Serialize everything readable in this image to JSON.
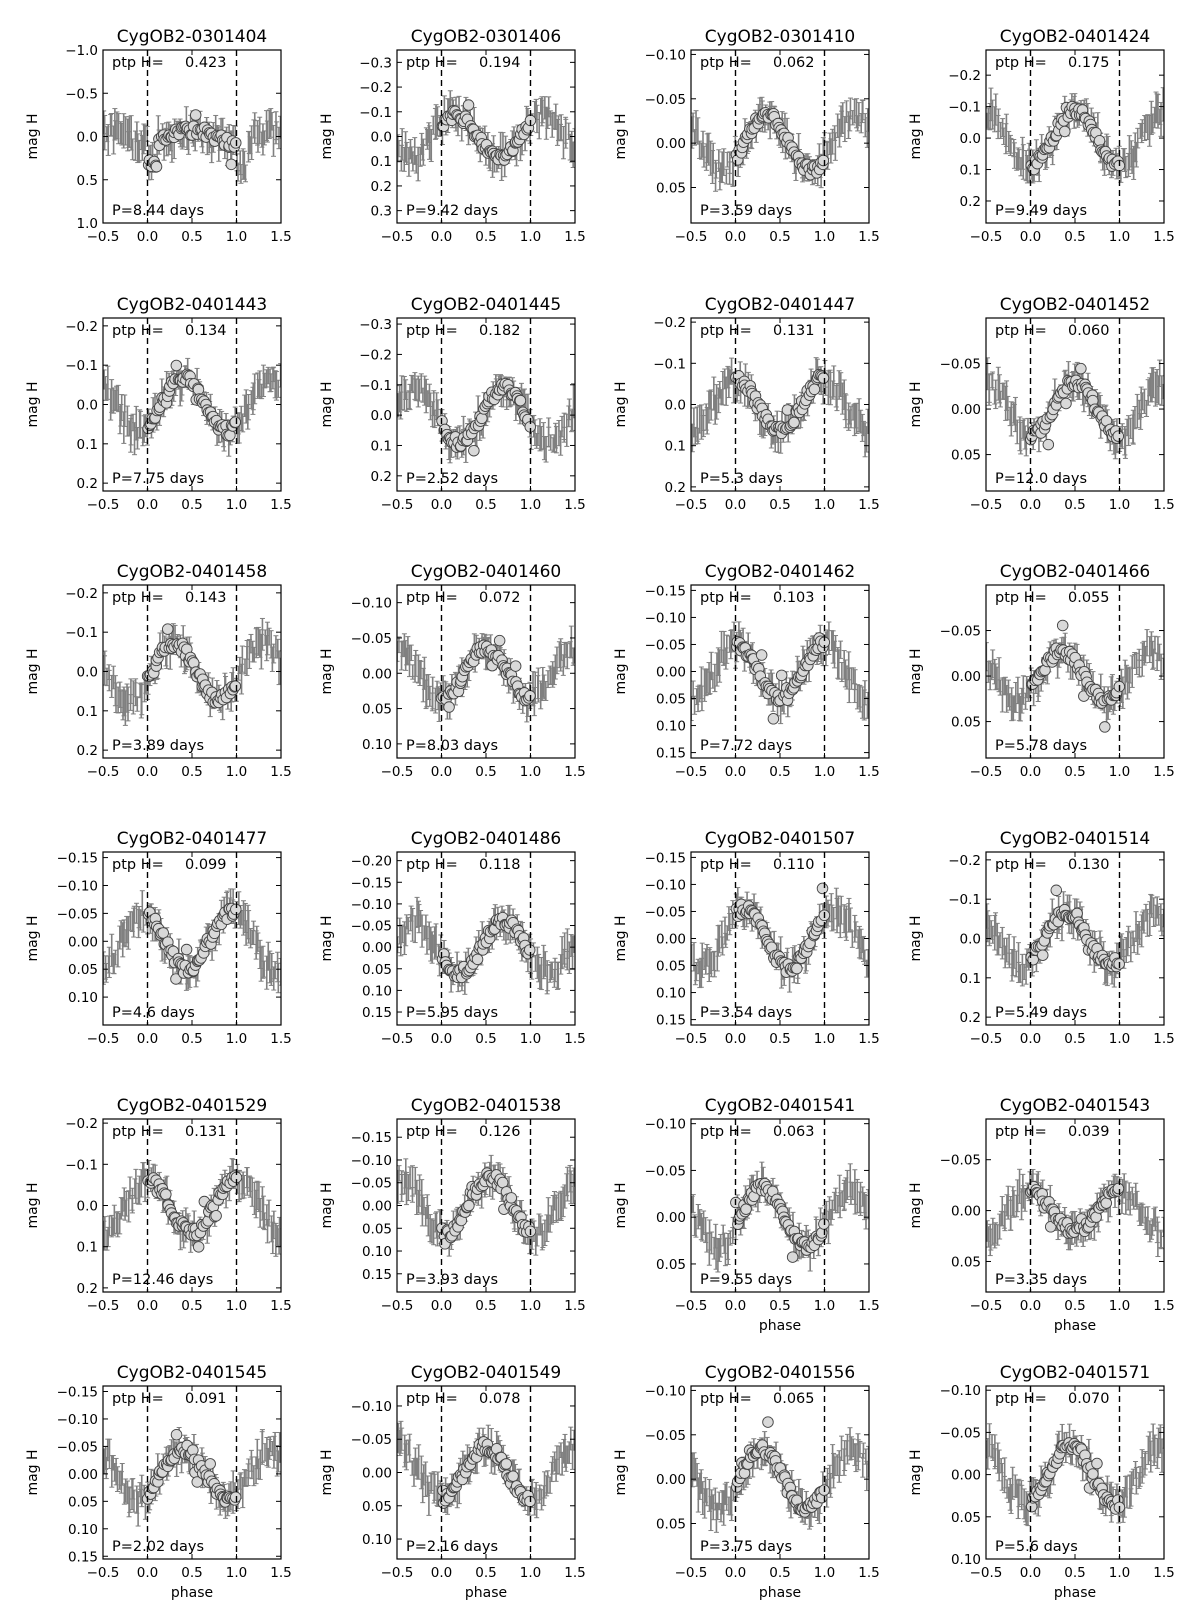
{
  "chart_data": {
    "type": "scatter",
    "layout": "6x4 grid of phase-folded light curves",
    "x_axis": {
      "label": "phase",
      "range": [
        -0.5,
        1.5
      ],
      "ticks": [
        "−0.5",
        "0.0",
        "0.5",
        "1.0",
        "1.5"
      ],
      "label_on_panels": [
        18,
        19,
        20,
        21,
        22,
        23
      ]
    },
    "y_axis": {
      "label": "mag H",
      "inverted": true
    },
    "reference_lines": {
      "style": "dashed",
      "x": [
        0.0,
        1.0
      ]
    },
    "colors": {
      "errorbars": "#808080",
      "markers_fill": "#d9d9d9",
      "markers_edge": "#444444",
      "frame": "#000000"
    },
    "annotation_prefixes": {
      "ptp": "ptp H=",
      "period": "P=",
      "period_unit": " days"
    },
    "panels": [
      {
        "id": "CygOB2-0301404",
        "ptp": "0.423",
        "period": "8.44",
        "ylim": [
          1.0,
          -1.0
        ],
        "yticks": [
          [
            "−1.0",
            -1.0
          ],
          [
            "−0.5",
            -0.5
          ],
          [
            "0.0",
            0.0
          ],
          [
            "0.5",
            0.5
          ],
          [
            "1.0",
            1.0
          ]
        ],
        "shape": "flare",
        "amp": 0.212
      },
      {
        "id": "CygOB2-0301406",
        "ptp": "0.194",
        "period": "9.42",
        "ylim": [
          0.35,
          -0.35
        ],
        "yticks": [
          [
            "−0.3",
            -0.3
          ],
          [
            "−0.2",
            -0.2
          ],
          [
            "−0.1",
            -0.1
          ],
          [
            "0.0",
            0.0
          ],
          [
            "0.1",
            0.1
          ],
          [
            "0.2",
            0.2
          ],
          [
            "0.3",
            0.3
          ]
        ],
        "shape": "dip",
        "amp": 0.097,
        "dip": 0.65
      },
      {
        "id": "CygOB2-0301410",
        "ptp": "0.062",
        "period": "3.59",
        "ylim": [
          0.09,
          -0.105
        ],
        "yticks": [
          [
            "−0.10",
            -0.1
          ],
          [
            "−0.05",
            -0.05
          ],
          [
            "0.00",
            0.0
          ],
          [
            "0.05",
            0.05
          ]
        ],
        "shape": "sine",
        "amp": 0.031,
        "peak": 0.35
      },
      {
        "id": "CygOB2-0401424",
        "ptp": "0.175",
        "period": "9.49",
        "ylim": [
          0.27,
          -0.28
        ],
        "yticks": [
          [
            "−0.2",
            -0.2
          ],
          [
            "−0.1",
            -0.1
          ],
          [
            "0.0",
            0.0
          ],
          [
            "0.1",
            0.1
          ],
          [
            "0.2",
            0.2
          ]
        ],
        "shape": "sine",
        "amp": 0.087,
        "peak": 0.5
      },
      {
        "id": "CygOB2-0401443",
        "ptp": "0.134",
        "period": "7.75",
        "ylim": [
          0.22,
          -0.22
        ],
        "yticks": [
          [
            "−0.2",
            -0.2
          ],
          [
            "−0.1",
            -0.1
          ],
          [
            "0.0",
            0.0
          ],
          [
            "0.1",
            0.1
          ],
          [
            "0.2",
            0.2
          ]
        ],
        "shape": "sine",
        "amp": 0.067,
        "peak": 0.4
      },
      {
        "id": "CygOB2-0401445",
        "ptp": "0.182",
        "period": "2.52",
        "ylim": [
          0.25,
          -0.32
        ],
        "yticks": [
          [
            "−0.3",
            -0.3
          ],
          [
            "−0.2",
            -0.2
          ],
          [
            "−0.1",
            -0.1
          ],
          [
            "0.0",
            0.0
          ],
          [
            "0.1",
            0.1
          ],
          [
            "0.2",
            0.2
          ]
        ],
        "shape": "sine",
        "amp": 0.091,
        "peak": 0.7
      },
      {
        "id": "CygOB2-0401447",
        "ptp": "0.131",
        "period": "5.3",
        "ylim": [
          0.21,
          -0.21
        ],
        "yticks": [
          [
            "−0.2",
            -0.2
          ],
          [
            "−0.1",
            -0.1
          ],
          [
            "0.0",
            0.0
          ],
          [
            "0.1",
            0.1
          ],
          [
            "0.2",
            0.2
          ]
        ],
        "shape": "sine",
        "amp": 0.065,
        "peak": 0.0
      },
      {
        "id": "CygOB2-0401452",
        "ptp": "0.060",
        "period": "12.0",
        "ylim": [
          0.09,
          -0.1
        ],
        "yticks": [
          [
            "−0.05",
            -0.05
          ],
          [
            "0.00",
            0.0
          ],
          [
            "0.05",
            0.05
          ]
        ],
        "shape": "sine",
        "amp": 0.03,
        "peak": 0.5
      },
      {
        "id": "CygOB2-0401458",
        "ptp": "0.143",
        "period": "3.89",
        "ylim": [
          0.22,
          -0.22
        ],
        "yticks": [
          [
            "−0.2",
            -0.2
          ],
          [
            "−0.1",
            -0.1
          ],
          [
            "0.0",
            0.0
          ],
          [
            "0.1",
            0.1
          ],
          [
            "0.2",
            0.2
          ]
        ],
        "shape": "sine",
        "amp": 0.072,
        "peak": 0.3
      },
      {
        "id": "CygOB2-0401460",
        "ptp": "0.072",
        "period": "8.03",
        "ylim": [
          0.12,
          -0.125
        ],
        "yticks": [
          [
            "−0.10",
            -0.1
          ],
          [
            "−0.05",
            -0.05
          ],
          [
            "0.00",
            0.0
          ],
          [
            "0.05",
            0.05
          ],
          [
            "0.10",
            0.1
          ]
        ],
        "shape": "sine",
        "amp": 0.036,
        "peak": 0.5
      },
      {
        "id": "CygOB2-0401462",
        "ptp": "0.103",
        "period": "7.72",
        "ylim": [
          0.16,
          -0.16
        ],
        "yticks": [
          [
            "−0.15",
            -0.15
          ],
          [
            "−0.10",
            -0.1
          ],
          [
            "−0.05",
            -0.05
          ],
          [
            "0.00",
            0.0
          ],
          [
            "0.05",
            0.05
          ],
          [
            "0.10",
            0.1
          ],
          [
            "0.15",
            0.15
          ]
        ],
        "shape": "sine",
        "amp": 0.051,
        "peak": 0.0
      },
      {
        "id": "CygOB2-0401466",
        "ptp": "0.055",
        "period": "5.78",
        "ylim": [
          0.09,
          -0.1
        ],
        "yticks": [
          [
            "−0.05",
            -0.05
          ],
          [
            "0.00",
            0.0
          ],
          [
            "0.05",
            0.05
          ]
        ],
        "shape": "sine",
        "amp": 0.027,
        "peak": 0.35
      },
      {
        "id": "CygOB2-0401477",
        "ptp": "0.099",
        "period": "4.6",
        "ylim": [
          0.15,
          -0.16
        ],
        "yticks": [
          [
            "−0.15",
            -0.15
          ],
          [
            "−0.10",
            -0.1
          ],
          [
            "−0.05",
            -0.05
          ],
          [
            "0.00",
            0.0
          ],
          [
            "0.05",
            0.05
          ],
          [
            "0.10",
            0.1
          ]
        ],
        "shape": "sine",
        "amp": 0.05,
        "peak": 0.95
      },
      {
        "id": "CygOB2-0401486",
        "ptp": "0.118",
        "period": "5.95",
        "ylim": [
          0.18,
          -0.22
        ],
        "yticks": [
          [
            "−0.20",
            -0.2
          ],
          [
            "−0.15",
            -0.15
          ],
          [
            "−0.10",
            -0.1
          ],
          [
            "−0.05",
            -0.05
          ],
          [
            "0.00",
            0.0
          ],
          [
            "0.05",
            0.05
          ],
          [
            "0.10",
            0.1
          ],
          [
            "0.15",
            0.15
          ]
        ],
        "shape": "sine",
        "amp": 0.059,
        "peak": 0.7
      },
      {
        "id": "CygOB2-0401507",
        "ptp": "0.110",
        "period": "3.54",
        "ylim": [
          0.16,
          -0.16
        ],
        "yticks": [
          [
            "−0.15",
            -0.15
          ],
          [
            "−0.10",
            -0.1
          ],
          [
            "−0.05",
            -0.05
          ],
          [
            "0.00",
            0.0
          ],
          [
            "0.05",
            0.05
          ],
          [
            "0.10",
            0.1
          ],
          [
            "0.15",
            0.15
          ]
        ],
        "shape": "sine",
        "amp": 0.055,
        "peak": 0.1
      },
      {
        "id": "CygOB2-0401514",
        "ptp": "0.130",
        "period": "5.49",
        "ylim": [
          0.22,
          -0.22
        ],
        "yticks": [
          [
            "−0.2",
            -0.2
          ],
          [
            "−0.1",
            -0.1
          ],
          [
            "0.0",
            0.0
          ],
          [
            "0.1",
            0.1
          ],
          [
            "0.2",
            0.2
          ]
        ],
        "shape": "sine",
        "amp": 0.065,
        "peak": 0.4
      },
      {
        "id": "CygOB2-0401529",
        "ptp": "0.131",
        "period": "12.46",
        "ylim": [
          0.21,
          -0.21
        ],
        "yticks": [
          [
            "−0.2",
            -0.2
          ],
          [
            "−0.1",
            -0.1
          ],
          [
            "0.0",
            0.0
          ],
          [
            "0.1",
            0.1
          ],
          [
            "0.2",
            0.2
          ]
        ],
        "shape": "sine",
        "amp": 0.065,
        "peak": 0.0
      },
      {
        "id": "CygOB2-0401538",
        "ptp": "0.126",
        "period": "3.93",
        "ylim": [
          0.19,
          -0.19
        ],
        "yticks": [
          [
            "−0.15",
            -0.15
          ],
          [
            "−0.10",
            -0.1
          ],
          [
            "−0.05",
            -0.05
          ],
          [
            "0.00",
            0.0
          ],
          [
            "0.05",
            0.05
          ],
          [
            "0.10",
            0.1
          ],
          [
            "0.15",
            0.15
          ]
        ],
        "shape": "sine",
        "amp": 0.063,
        "peak": 0.55
      },
      {
        "id": "CygOB2-0401541",
        "ptp": "0.063",
        "period": "9.55",
        "ylim": [
          0.08,
          -0.105
        ],
        "yticks": [
          [
            "−0.10",
            -0.1
          ],
          [
            "−0.05",
            -0.05
          ],
          [
            "0.00",
            0.0
          ],
          [
            "0.05",
            0.05
          ]
        ],
        "shape": "sine",
        "amp": 0.031,
        "peak": 0.3
      },
      {
        "id": "CygOB2-0401543",
        "ptp": "0.039",
        "period": "3.35",
        "ylim": [
          0.08,
          -0.09
        ],
        "yticks": [
          [
            "−0.05",
            -0.05
          ],
          [
            "0.00",
            0.0
          ],
          [
            "0.05",
            0.05
          ]
        ],
        "shape": "sine",
        "amp": 0.02,
        "peak": 0.0
      },
      {
        "id": "CygOB2-0401545",
        "ptp": "0.091",
        "period": "2.02",
        "ylim": [
          0.155,
          -0.16
        ],
        "yticks": [
          [
            "−0.15",
            -0.15
          ],
          [
            "−0.10",
            -0.1
          ],
          [
            "−0.05",
            -0.05
          ],
          [
            "0.00",
            0.0
          ],
          [
            "0.05",
            0.05
          ],
          [
            "0.10",
            0.1
          ],
          [
            "0.15",
            0.15
          ]
        ],
        "shape": "sine",
        "amp": 0.045,
        "peak": 0.4
      },
      {
        "id": "CygOB2-0401549",
        "ptp": "0.078",
        "period": "2.16",
        "ylim": [
          0.13,
          -0.13
        ],
        "yticks": [
          [
            "−0.10",
            -0.1
          ],
          [
            "−0.05",
            -0.05
          ],
          [
            "0.00",
            0.0
          ],
          [
            "0.05",
            0.05
          ],
          [
            "0.10",
            0.1
          ]
        ],
        "shape": "sine",
        "amp": 0.039,
        "peak": 0.5
      },
      {
        "id": "CygOB2-0401556",
        "ptp": "0.065",
        "period": "3.75",
        "ylim": [
          0.09,
          -0.105
        ],
        "yticks": [
          [
            "−0.10",
            -0.1
          ],
          [
            "−0.05",
            -0.05
          ],
          [
            "0.00",
            0.0
          ],
          [
            "0.05",
            0.05
          ]
        ],
        "shape": "sine",
        "amp": 0.033,
        "peak": 0.3
      },
      {
        "id": "CygOB2-0401571",
        "ptp": "0.070",
        "period": "5.6",
        "ylim": [
          0.1,
          -0.105
        ],
        "yticks": [
          [
            "−0.10",
            -0.1
          ],
          [
            "−0.05",
            -0.05
          ],
          [
            "0.00",
            0.0
          ],
          [
            "0.05",
            0.05
          ],
          [
            "0.10",
            0.1
          ]
        ],
        "shape": "sine",
        "amp": 0.035,
        "peak": 0.45
      }
    ]
  }
}
